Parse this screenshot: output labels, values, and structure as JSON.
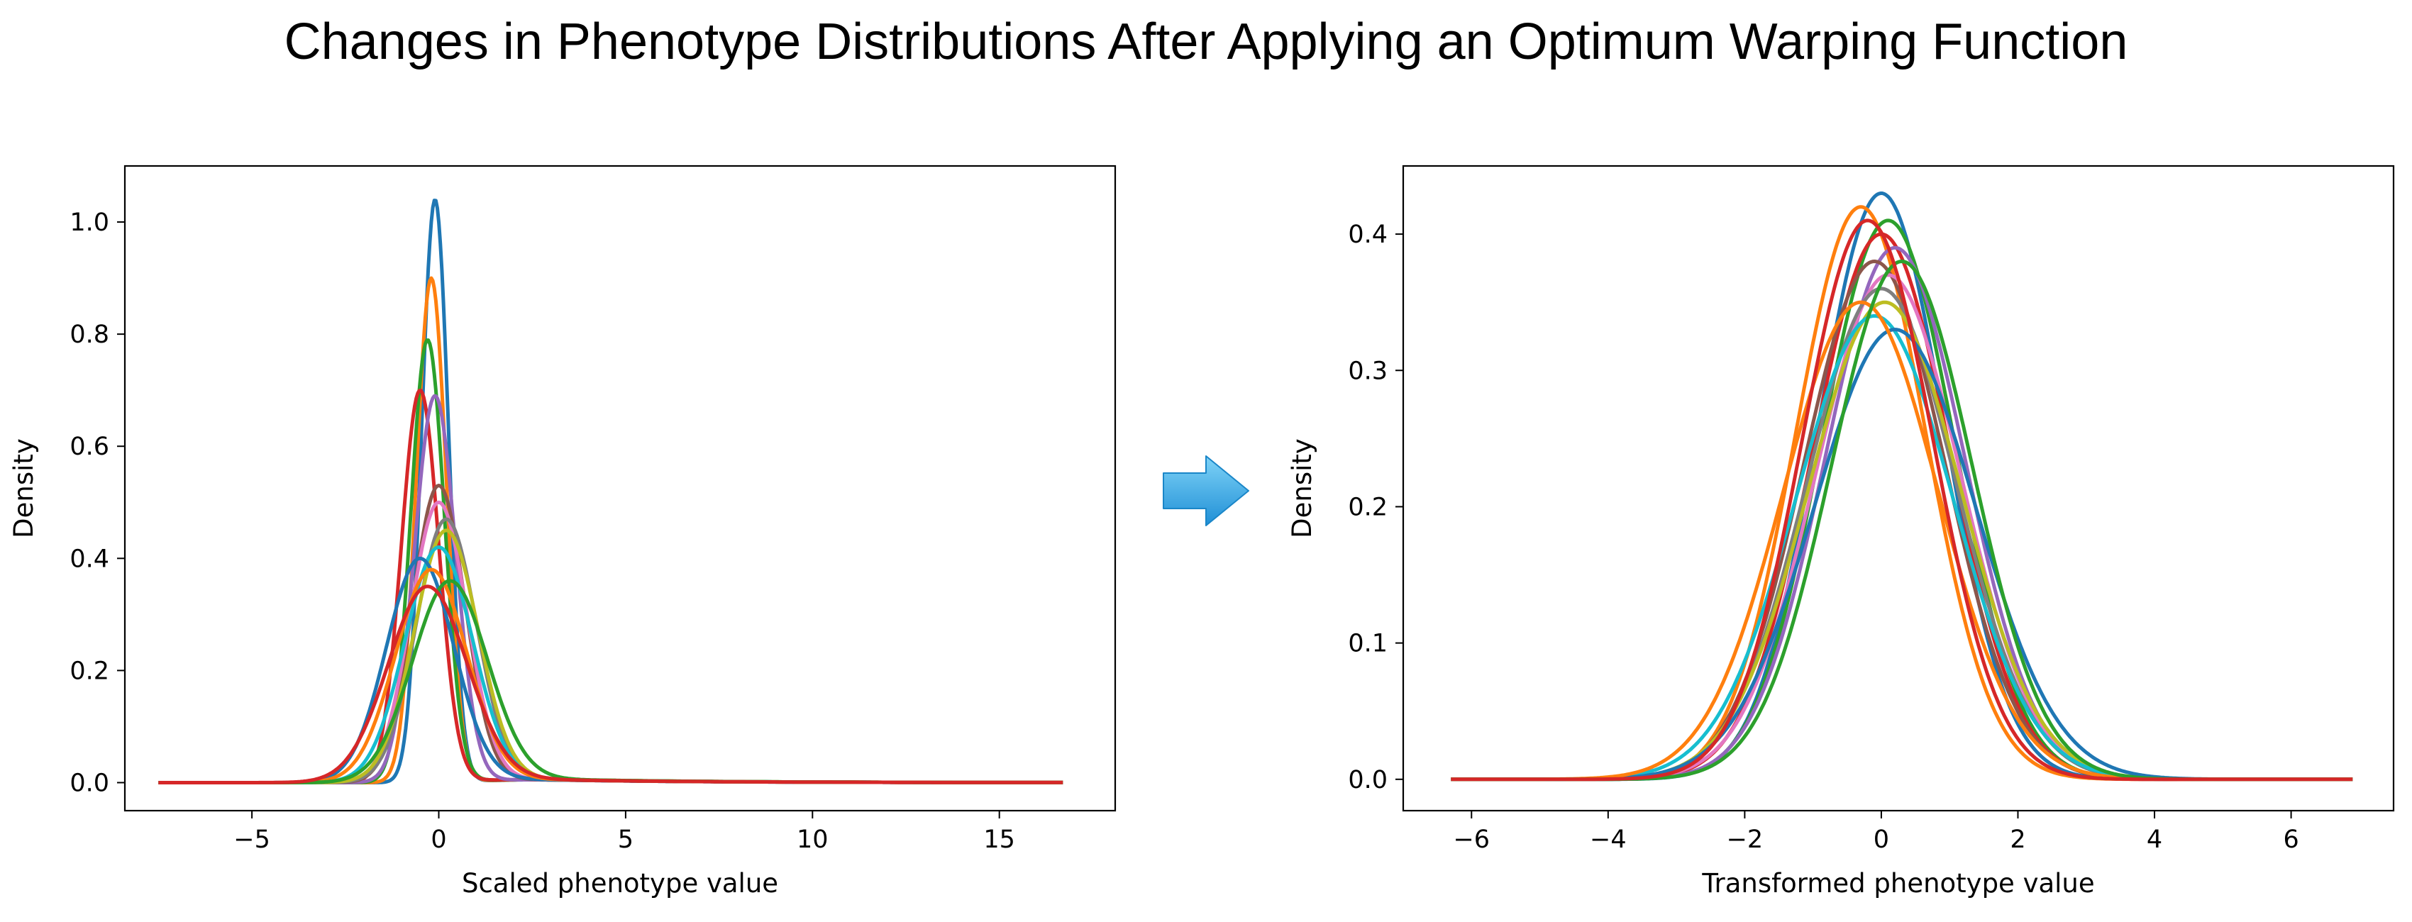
{
  "figure_title": "Changes in Phenotype Distributions After Applying an Optimum Warping Function",
  "colors": {
    "series": [
      "#1f77b4",
      "#ff7f0e",
      "#2ca02c",
      "#d62728",
      "#9467bd",
      "#8c564b",
      "#e377c2",
      "#7f7f7f",
      "#bcbd22",
      "#17becf"
    ],
    "arrow_light": "#7fd3f7",
    "arrow_dark": "#1f8fd6"
  },
  "arrow_icon": "right-arrow-icon",
  "chart_data": [
    {
      "type": "line",
      "xlabel": "Scaled phenotype value",
      "ylabel": "Density",
      "xlim": [
        -8.4,
        18.1
      ],
      "ylim": [
        -0.05,
        1.1
      ],
      "xticks": [
        -5,
        0,
        5,
        10,
        15
      ],
      "yticks": [
        0.0,
        0.2,
        0.4,
        0.6,
        0.8,
        1.0
      ],
      "x_range_drawn": [
        -7.5,
        16.7
      ],
      "grid": false,
      "legend": "none",
      "series": [
        {
          "peak": 1.04,
          "center": -0.1,
          "width": 0.36
        },
        {
          "peak": 0.9,
          "center": -0.2,
          "width": 0.4
        },
        {
          "peak": 0.79,
          "center": -0.3,
          "width": 0.45
        },
        {
          "peak": 0.7,
          "center": -0.5,
          "width": 0.5
        },
        {
          "peak": 0.69,
          "center": -0.1,
          "width": 0.55
        },
        {
          "peak": 0.53,
          "center": 0.0,
          "width": 0.7
        },
        {
          "peak": 0.5,
          "center": 0.0,
          "width": 0.75
        },
        {
          "peak": 0.47,
          "center": 0.2,
          "width": 0.8
        },
        {
          "peak": 0.45,
          "center": 0.2,
          "width": 0.85
        },
        {
          "peak": 0.42,
          "center": 0.0,
          "width": 0.9
        },
        {
          "peak": 0.4,
          "center": -0.5,
          "width": 0.9
        },
        {
          "peak": 0.38,
          "center": -0.2,
          "width": 0.95
        },
        {
          "peak": 0.36,
          "center": 0.3,
          "width": 1.0
        },
        {
          "peak": 0.35,
          "center": -0.3,
          "width": 1.05
        }
      ]
    },
    {
      "type": "line",
      "xlabel": "Transformed phenotype value",
      "ylabel": "Density",
      "xlim": [
        -7.0,
        7.5
      ],
      "ylim": [
        -0.023,
        0.45
      ],
      "xticks": [
        -6,
        -4,
        -2,
        0,
        2,
        4,
        6
      ],
      "yticks": [
        0.0,
        0.1,
        0.2,
        0.3,
        0.4
      ],
      "x_range_drawn": [
        -6.3,
        6.9
      ],
      "grid": false,
      "legend": "none",
      "series": [
        {
          "peak": 0.43,
          "center": 0.0,
          "width": 0.92
        },
        {
          "peak": 0.42,
          "center": -0.3,
          "width": 0.95
        },
        {
          "peak": 0.41,
          "center": 0.1,
          "width": 0.97
        },
        {
          "peak": 0.4,
          "center": 0.0,
          "width": 1.0
        },
        {
          "peak": 0.39,
          "center": 0.2,
          "width": 1.02
        },
        {
          "peak": 0.38,
          "center": -0.1,
          "width": 1.04
        },
        {
          "peak": 0.37,
          "center": 0.1,
          "width": 1.06
        },
        {
          "peak": 0.36,
          "center": 0.0,
          "width": 1.09
        },
        {
          "peak": 0.35,
          "center": 0.05,
          "width": 1.12
        },
        {
          "peak": 0.34,
          "center": -0.1,
          "width": 1.15
        },
        {
          "peak": 0.33,
          "center": 0.2,
          "width": 1.18
        },
        {
          "peak": 0.35,
          "center": -0.3,
          "width": 1.13
        },
        {
          "peak": 0.38,
          "center": 0.3,
          "width": 1.03
        },
        {
          "peak": 0.41,
          "center": -0.2,
          "width": 0.96
        }
      ]
    }
  ]
}
